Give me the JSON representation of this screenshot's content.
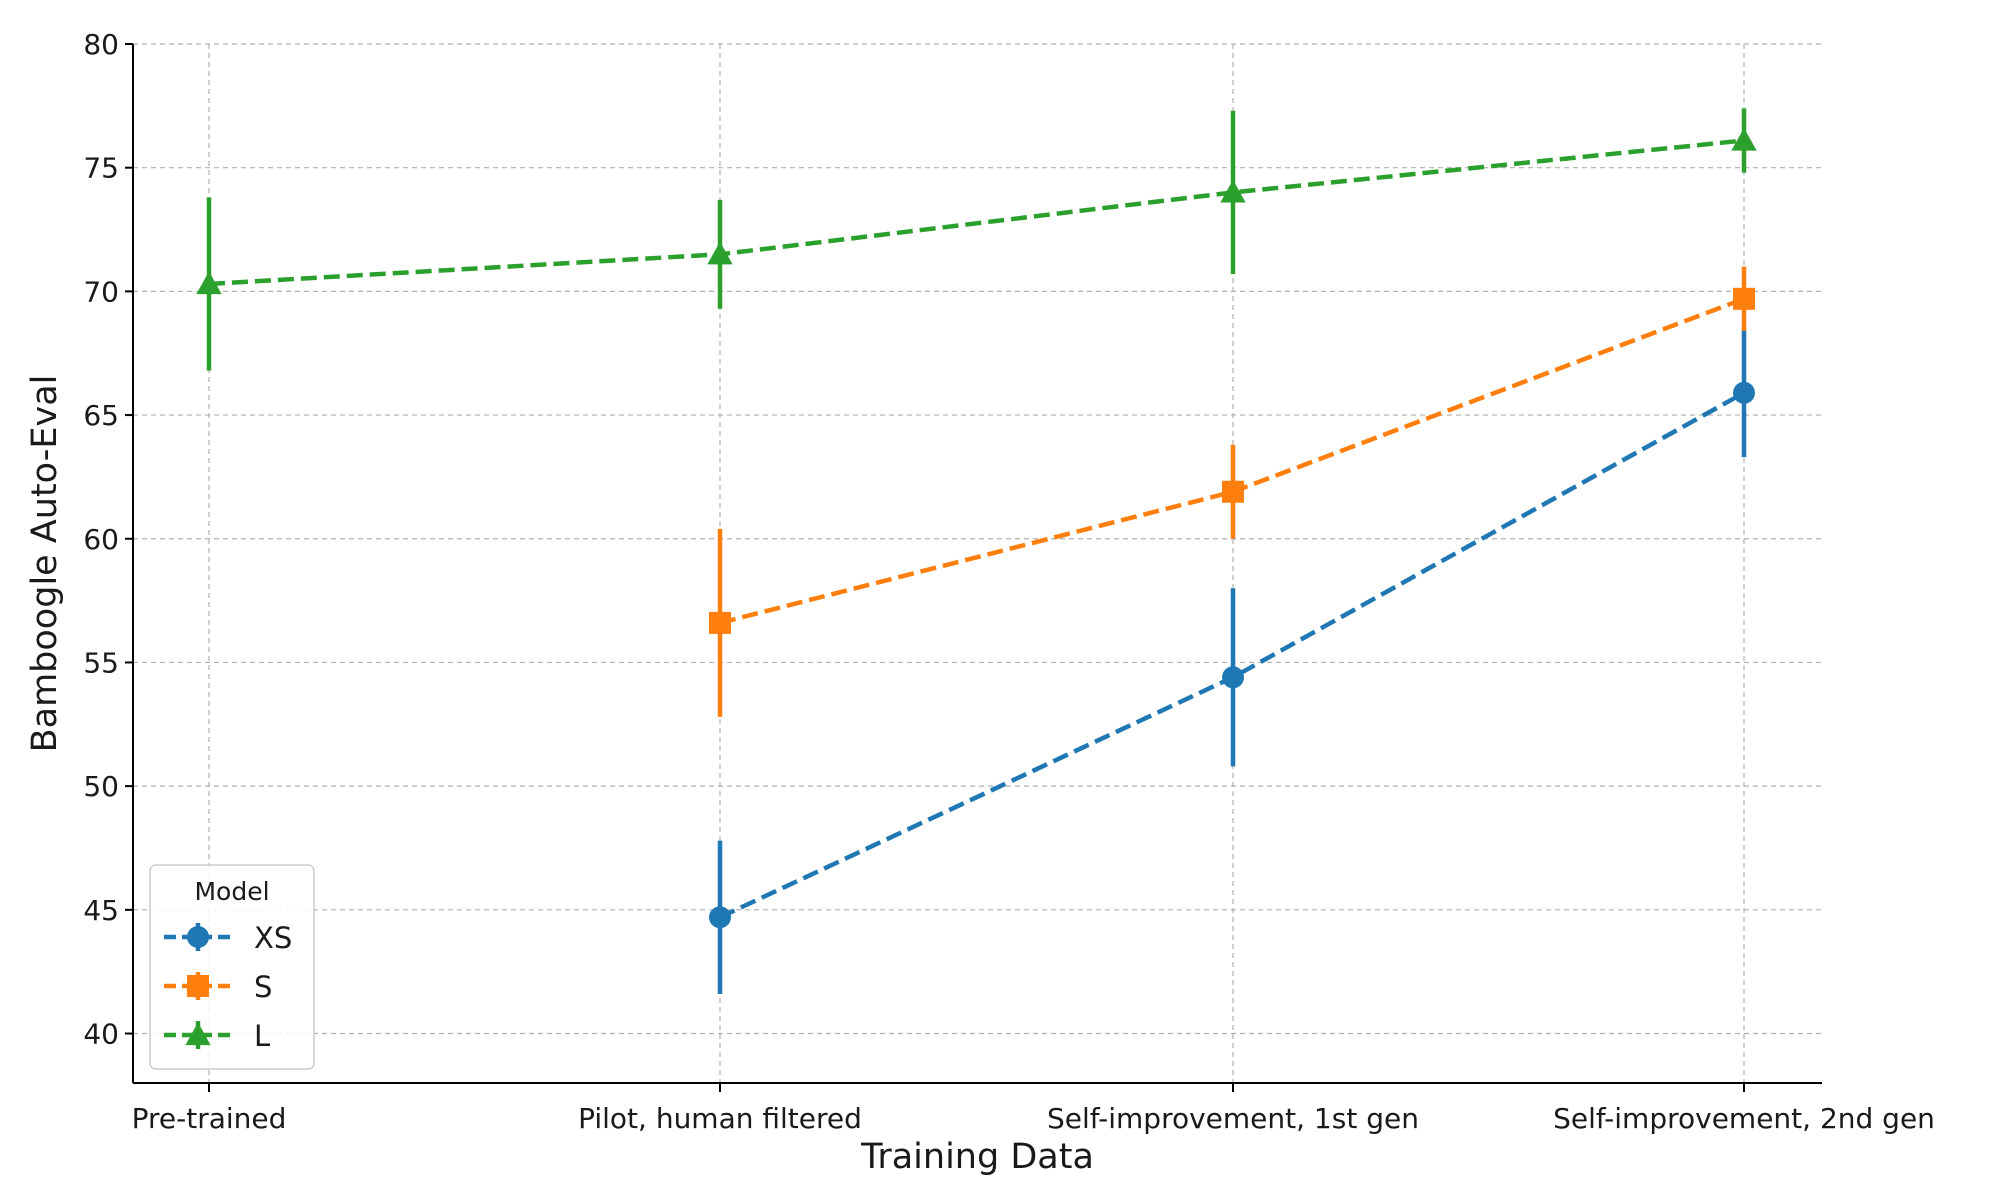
{
  "chart_data": {
    "type": "line",
    "xlabel": "Training Data",
    "ylabel": "Bamboogle Auto-Eval",
    "categories": [
      "Pre-trained",
      "Pilot, human filtered",
      "Self-improvement, 1st gen",
      "Self-improvement, 2nd gen"
    ],
    "ylim": [
      38,
      80
    ],
    "yticks": [
      40,
      45,
      50,
      55,
      60,
      65,
      70,
      75,
      80
    ],
    "grid": true,
    "legend": {
      "title": "Model",
      "placement": "lower-left"
    },
    "series": [
      {
        "name": "XS",
        "color": "#1f77b4",
        "marker": "circle",
        "linestyle": "dashed",
        "values": [
          null,
          44.7,
          54.4,
          65.9
        ],
        "err_low": [
          null,
          41.6,
          50.8,
          63.3
        ],
        "err_high": [
          null,
          47.8,
          58.0,
          68.5
        ]
      },
      {
        "name": "S",
        "color": "#ff7f0e",
        "marker": "square",
        "linestyle": "dashed",
        "values": [
          null,
          56.6,
          61.9,
          69.7
        ],
        "err_low": [
          null,
          52.8,
          60.0,
          68.4
        ],
        "err_high": [
          null,
          60.4,
          63.8,
          71.0
        ]
      },
      {
        "name": "L",
        "color": "#2ca02c",
        "marker": "triangle",
        "linestyle": "dashed",
        "values": [
          70.3,
          71.5,
          74.0,
          76.1
        ],
        "err_low": [
          66.8,
          69.3,
          70.7,
          74.8
        ],
        "err_high": [
          73.8,
          73.7,
          77.3,
          77.4
        ]
      }
    ]
  }
}
